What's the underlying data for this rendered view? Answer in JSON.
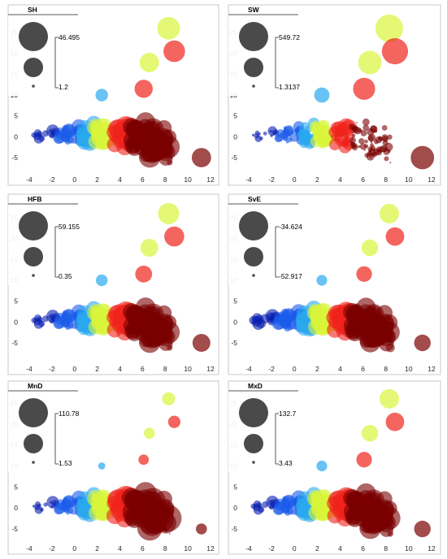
{
  "chart_data": [
    {
      "type": "scatter",
      "title": "SH",
      "legend_max": "46.495",
      "legend_min": "1.2",
      "xlim": [
        -4.5,
        13
      ],
      "ylim": [
        -8,
        29
      ],
      "xticks": [
        "-4",
        "-2",
        "0",
        "2",
        "4",
        "6",
        "8",
        "10",
        "12"
      ],
      "yticks": [
        "-5",
        "0",
        "5",
        "10",
        "15",
        "20",
        "25"
      ]
    },
    {
      "type": "scatter",
      "title": "SW",
      "legend_max": "549.72",
      "legend_min": "1.3137",
      "xlim": [
        -4.5,
        13
      ],
      "ylim": [
        -8,
        29
      ],
      "xticks": [
        "-4",
        "-2",
        "0",
        "2",
        "4",
        "6",
        "8",
        "10",
        "12"
      ],
      "yticks": [
        "-5",
        "0",
        "5",
        "10",
        "15",
        "20",
        "25"
      ]
    },
    {
      "type": "scatter",
      "title": "HFB",
      "legend_max": "59.155",
      "legend_min": "0.35",
      "xlim": [
        -4.5,
        13
      ],
      "ylim": [
        -8,
        29
      ],
      "xticks": [
        "-4",
        "-2",
        "0",
        "2",
        "4",
        "6",
        "8",
        "10",
        "12"
      ],
      "yticks": [
        "-5",
        "0",
        "5",
        "10",
        "15",
        "20",
        "25"
      ]
    },
    {
      "type": "scatter",
      "title": "SvE",
      "legend_max": "-34.624",
      "legend_min": "-52.917",
      "xlim": [
        -4.5,
        13
      ],
      "ylim": [
        -8,
        29
      ],
      "xticks": [
        "-4",
        "-2",
        "0",
        "2",
        "4",
        "6",
        "8",
        "10",
        "12"
      ],
      "yticks": [
        "-5",
        "0",
        "5",
        "10",
        "15",
        "20",
        "25"
      ]
    },
    {
      "type": "scatter",
      "title": "MnD",
      "legend_max": "110.78",
      "legend_min": "1.53",
      "xlim": [
        -4.5,
        13
      ],
      "ylim": [
        -8,
        29
      ],
      "xticks": [
        "-4",
        "-2",
        "0",
        "2",
        "4",
        "6",
        "8",
        "10",
        "12"
      ],
      "yticks": [
        "-5",
        "0",
        "5",
        "10",
        "15",
        "20",
        "25"
      ]
    },
    {
      "type": "scatter",
      "title": "MxD",
      "legend_max": "132.7",
      "legend_min": "3.43",
      "xlim": [
        -4.5,
        13
      ],
      "ylim": [
        -8,
        29
      ],
      "xticks": [
        "-4",
        "-2",
        "0",
        "2",
        "4",
        "6",
        "8",
        "10",
        "12"
      ],
      "yticks": [
        "-5",
        "0",
        "5",
        "10",
        "15",
        "20",
        "25"
      ]
    }
  ],
  "colors": {
    "dark_blue": "#0a1fb0",
    "blue": "#1b5bea",
    "light_blue": "#2aa8ef",
    "yellow_green": "#d8f53a",
    "red": "#f0231c",
    "dark_red": "#7a0000",
    "legend_marker": "#4a4a4a"
  }
}
